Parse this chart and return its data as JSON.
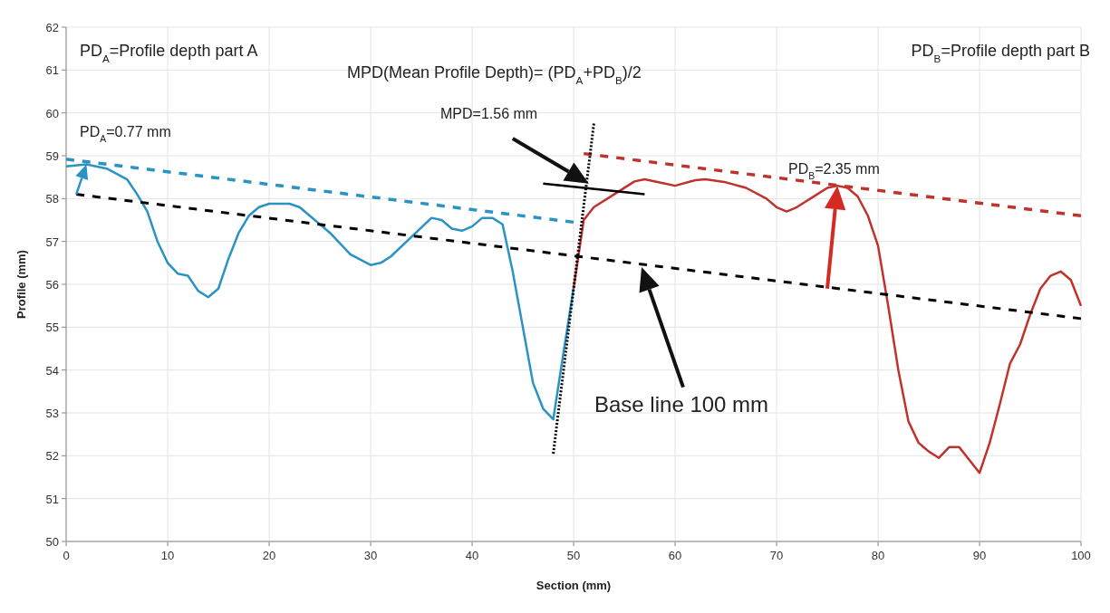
{
  "chart_data": {
    "type": "line",
    "xlabel": "Section (mm)",
    "ylabel": "Profile (mm)",
    "xlim": [
      0,
      100
    ],
    "ylim": [
      50,
      62
    ],
    "xticks": [
      0,
      10,
      20,
      30,
      40,
      50,
      60,
      70,
      80,
      90,
      100
    ],
    "yticks": [
      50,
      51,
      52,
      53,
      54,
      55,
      56,
      57,
      58,
      59,
      60,
      61,
      62
    ],
    "grid": true,
    "series": [
      {
        "color": "#2a93c4",
        "line_style": "solid",
        "x": [
          0,
          2,
          4,
          6,
          7,
          8,
          9,
          10,
          11,
          12,
          13,
          14,
          15,
          16,
          17,
          18,
          19,
          20,
          22,
          23,
          24,
          26,
          28,
          30,
          31,
          32,
          34,
          36,
          37,
          38,
          39,
          40,
          41,
          42,
          43,
          44,
          45,
          46,
          47,
          48,
          49,
          50
        ],
        "values": [
          58.75,
          58.8,
          58.7,
          58.45,
          58.1,
          57.7,
          57.0,
          56.5,
          56.25,
          56.2,
          55.85,
          55.7,
          55.9,
          56.6,
          57.2,
          57.6,
          57.8,
          57.88,
          57.88,
          57.8,
          57.6,
          57.2,
          56.7,
          56.45,
          56.5,
          56.65,
          57.1,
          57.55,
          57.5,
          57.3,
          57.25,
          57.35,
          57.55,
          57.55,
          57.4,
          56.3,
          55.0,
          53.7,
          53.1,
          52.85,
          54.4,
          55.9
        ]
      },
      {
        "color": "#c0332d",
        "line_style": "solid",
        "x": [
          50,
          51,
          52,
          54,
          56,
          57,
          59,
          60,
          62,
          63,
          65,
          67,
          69,
          70,
          71,
          72,
          74,
          75,
          76,
          77,
          78,
          79,
          80,
          81,
          82,
          83,
          84,
          85,
          86,
          87,
          88,
          89,
          90,
          91,
          92,
          93,
          94,
          95,
          96,
          97,
          98,
          99,
          100
        ],
        "values": [
          55.9,
          57.5,
          57.8,
          58.1,
          58.4,
          58.45,
          58.35,
          58.3,
          58.43,
          58.45,
          58.38,
          58.25,
          58.0,
          57.8,
          57.7,
          57.8,
          58.1,
          58.25,
          58.3,
          58.25,
          58.05,
          57.6,
          56.9,
          55.5,
          54.0,
          52.8,
          52.3,
          52.1,
          51.95,
          52.2,
          52.2,
          51.9,
          51.6,
          52.3,
          53.2,
          54.15,
          54.6,
          55.3,
          55.9,
          56.2,
          56.3,
          56.1,
          55.5
        ]
      },
      {
        "color": "#2a93c4",
        "line_style": "dashed",
        "x": [
          0,
          50
        ],
        "values": [
          58.92,
          57.45
        ]
      },
      {
        "color": "#c0332d",
        "line_style": "dashed",
        "x": [
          51,
          100
        ],
        "values": [
          59.05,
          57.6
        ]
      },
      {
        "color": "#000000",
        "line_style": "dashed",
        "x": [
          1,
          100
        ],
        "values": [
          58.1,
          55.2
        ]
      },
      {
        "color": "#000000",
        "line_style": "dotted",
        "x": [
          48,
          52
        ],
        "values": [
          52.05,
          59.75
        ]
      },
      {
        "color": "#000000",
        "line_style": "solid",
        "x": [
          47,
          57
        ],
        "values": [
          58.35,
          58.1
        ]
      }
    ],
    "annotations": [
      "PD$_{A}$=Profile depth part A",
      "MPD(Mean Profile Depth)=  (PD$_{A}$+PD$_{B}$)/2",
      "PD$_{B}$=Profile depth part B",
      "PD$_{A}$=0.77 mm",
      "MPD=1.56 mm",
      "PD$_{B}$=2.35 mm",
      "Base line 100 mm"
    ]
  }
}
